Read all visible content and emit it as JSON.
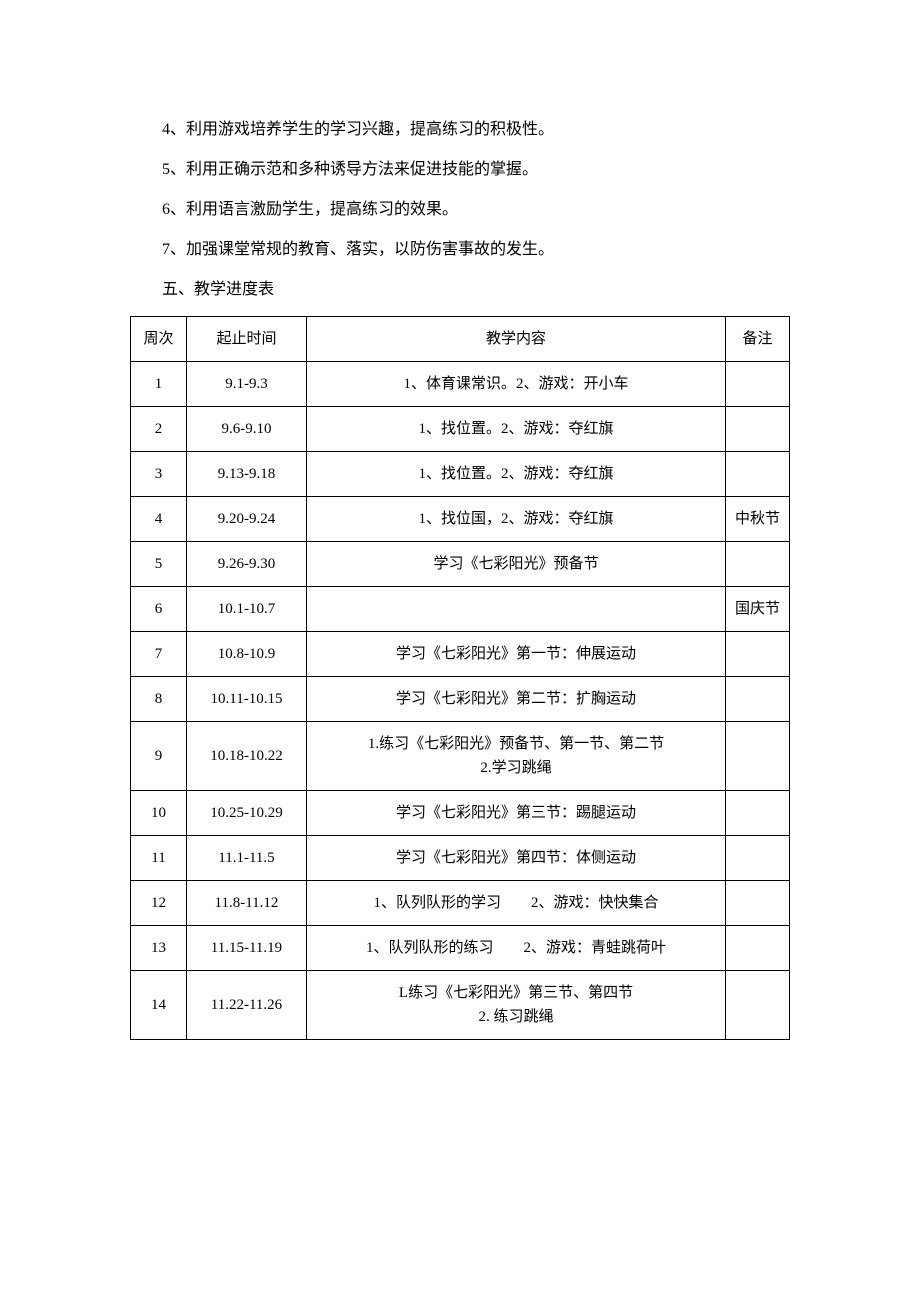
{
  "paragraphs": {
    "p4": "4、利用游戏培养学生的学习兴趣，提高练习的积极性。",
    "p5": "5、利用正确示范和多种诱导方法来促进技能的掌握。",
    "p6": "6、利用语言激励学生，提高练习的效果。",
    "p7": "7、加强课堂常规的教育、落实，以防伤害事故的发生。"
  },
  "section_heading": "五、教学进度表",
  "table": {
    "headers": {
      "week": "周次",
      "dates": "起止时间",
      "content": "教学内容",
      "note": "备注"
    },
    "rows": [
      {
        "week": "1",
        "dates": "9.1-9.3",
        "content": "1、体育课常识。2、游戏：开小车",
        "note": ""
      },
      {
        "week": "2",
        "dates": "9.6-9.10",
        "content": "1、找位置。2、游戏：夺红旗",
        "note": ""
      },
      {
        "week": "3",
        "dates": "9.13-9.18",
        "content": "1、找位置。2、游戏：夺红旗",
        "note": ""
      },
      {
        "week": "4",
        "dates": "9.20-9.24",
        "content": "1、找位国，2、游戏：夺红旗",
        "note": "中秋节"
      },
      {
        "week": "5",
        "dates": "9.26-9.30",
        "content": "学习《七彩阳光》预备节",
        "note": ""
      },
      {
        "week": "6",
        "dates": "10.1-10.7",
        "content": "",
        "note": "国庆节"
      },
      {
        "week": "7",
        "dates": "10.8-10.9",
        "content": "学习《七彩阳光》第一节：伸展运动",
        "note": ""
      },
      {
        "week": "8",
        "dates": "10.11-10.15",
        "content": "学习《七彩阳光》第二节：扩胸运动",
        "note": ""
      },
      {
        "week": "9",
        "dates": "10.18-10.22",
        "content": "1.练习《七彩阳光》预备节、第一节、第二节\n2.学习跳绳",
        "note": ""
      },
      {
        "week": "10",
        "dates": "10.25-10.29",
        "content": "学习《七彩阳光》第三节：踢腿运动",
        "note": ""
      },
      {
        "week": "11",
        "dates": "11.1-11.5",
        "content": "学习《七彩阳光》第四节：体侧运动",
        "note": ""
      },
      {
        "week": "12",
        "dates": "11.8-11.12",
        "content": "1、队列队形的学习　　2、游戏：快快集合",
        "note": ""
      },
      {
        "week": "13",
        "dates": "11.15-11.19",
        "content": "1、队列队形的练习　　2、游戏：青蛙跳荷叶",
        "note": ""
      },
      {
        "week": "14",
        "dates": "11.22-11.26",
        "content": "L练习《七彩阳光》第三节、第四节\n2. 练习跳绳",
        "note": ""
      }
    ]
  }
}
